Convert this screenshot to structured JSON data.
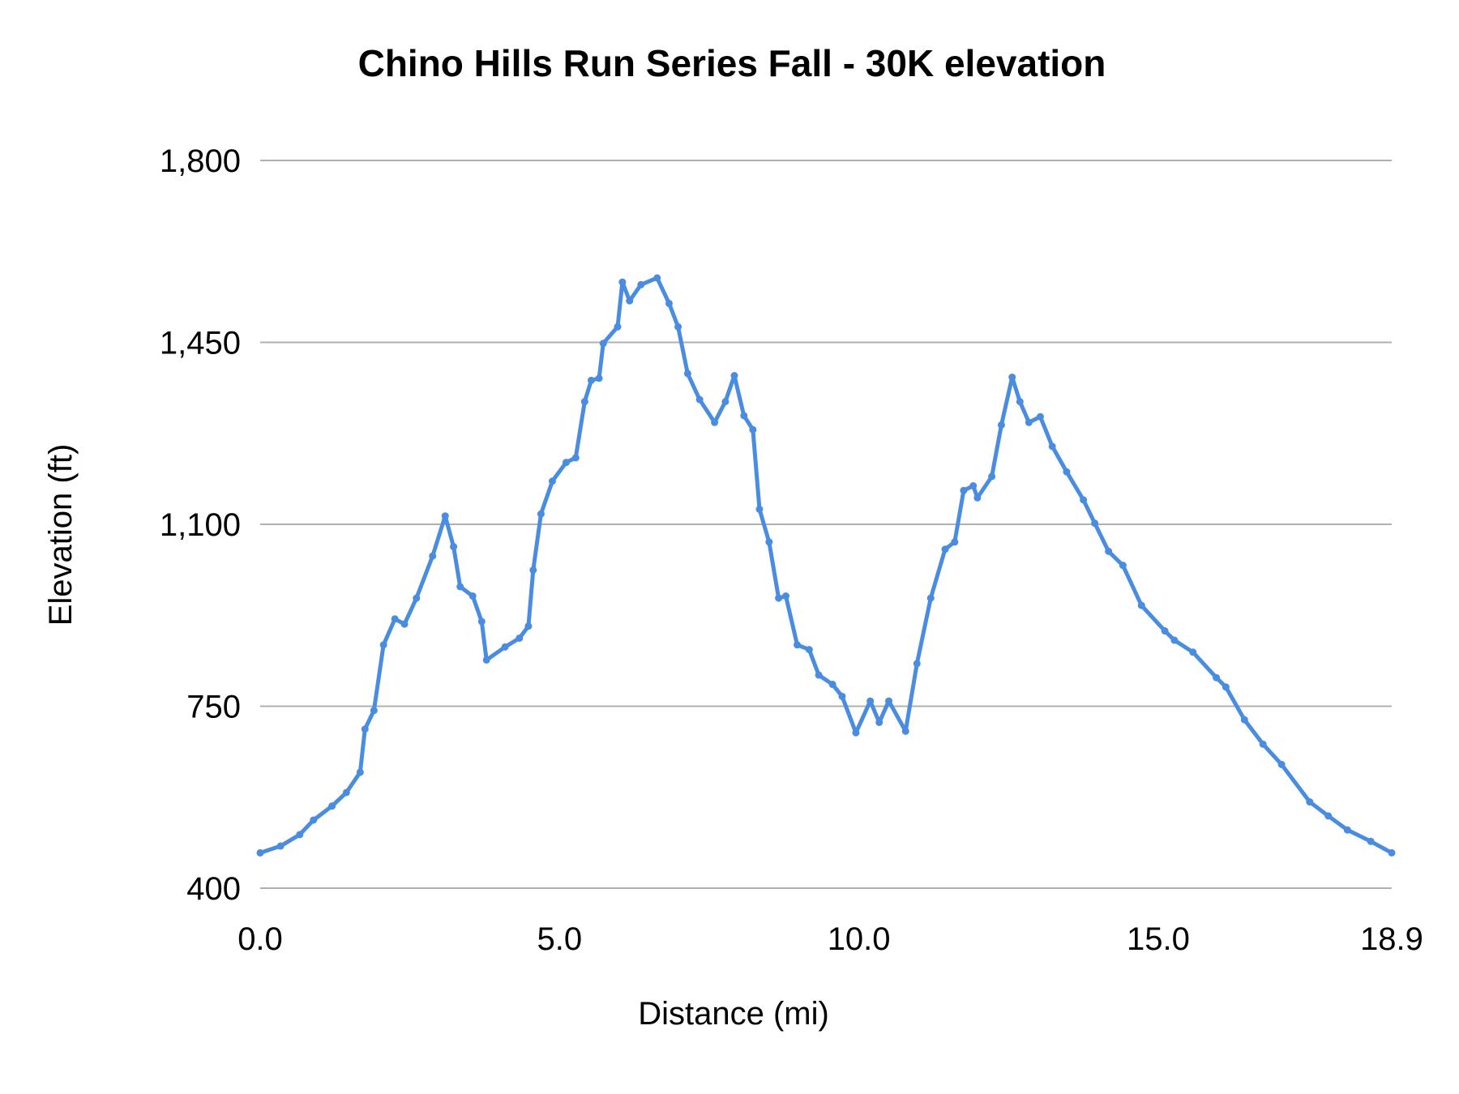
{
  "chart_data": {
    "type": "line",
    "title": "Chino Hills Run Series Fall - 30K elevation",
    "xlabel": "Distance (mi)",
    "ylabel": "Elevation (ft)",
    "xlim": [
      0,
      18.9
    ],
    "ylim": [
      400,
      1800
    ],
    "x_ticks": [
      "0.0",
      "5.0",
      "10.0",
      "15.0",
      "18.9"
    ],
    "x_tick_values": [
      0,
      5,
      10,
      15,
      18.9
    ],
    "y_ticks": [
      "400",
      "750",
      "1,100",
      "1,450",
      "1,800"
    ],
    "y_tick_values": [
      400,
      750,
      1100,
      1450,
      1800
    ],
    "grid": "horizontal",
    "legend": "none",
    "line_color": "#4a8de0",
    "grid_color": "#b0b0b0",
    "series": [
      {
        "x": [
          0,
          0.34,
          0.66,
          0.89,
          1.2,
          1.44,
          1.67,
          1.75,
          1.9,
          2.06,
          2.25,
          2.41,
          2.61,
          2.88,
          3.09,
          3.23,
          3.34,
          3.55,
          3.7,
          3.78,
          4.09,
          4.33,
          4.48,
          4.56,
          4.69,
          4.88,
          5.11,
          5.27,
          5.42,
          5.53,
          5.66,
          5.73,
          5.97,
          6.05,
          6.17,
          6.36,
          6.63,
          6.83,
          6.98,
          7.14,
          7.34,
          7.59,
          7.77,
          7.92,
          8.08,
          8.23,
          8.34,
          8.5,
          8.66,
          8.78,
          8.97,
          9.17,
          9.33,
          9.56,
          9.72,
          9.95,
          10.19,
          10.34,
          10.5,
          10.78,
          10.97,
          11.2,
          11.44,
          11.6,
          11.75,
          11.91,
          11.98,
          12.22,
          12.38,
          12.56,
          12.69,
          12.84,
          13.03,
          13.23,
          13.47,
          13.75,
          13.94,
          14.17,
          14.41,
          14.72,
          15.11,
          15.27,
          15.58,
          15.97,
          16.13,
          16.44,
          16.75,
          17.06,
          17.53,
          17.84,
          18.16,
          18.55,
          18.9
        ],
        "y": [
          468,
          481,
          503,
          531,
          558,
          584,
          623,
          706,
          742,
          868,
          918,
          908,
          958,
          1039,
          1116,
          1057,
          980,
          962,
          913,
          839,
          864,
          881,
          904,
          1012,
          1120,
          1183,
          1219,
          1228,
          1336,
          1377,
          1381,
          1448,
          1480,
          1566,
          1530,
          1561,
          1574,
          1525,
          1480,
          1390,
          1340,
          1296,
          1336,
          1386,
          1309,
          1282,
          1129,
          1066,
          958,
          962,
          868,
          859,
          810,
          792,
          769,
          699,
          760,
          719,
          760,
          702,
          832,
          958,
          1052,
          1066,
          1165,
          1174,
          1151,
          1192,
          1291,
          1383,
          1336,
          1296,
          1307,
          1250,
          1201,
          1147,
          1102,
          1048,
          1021,
          944,
          895,
          877,
          854,
          805,
          787,
          724,
          677,
          638,
          566,
          539,
          512,
          490,
          468
        ]
      }
    ]
  }
}
